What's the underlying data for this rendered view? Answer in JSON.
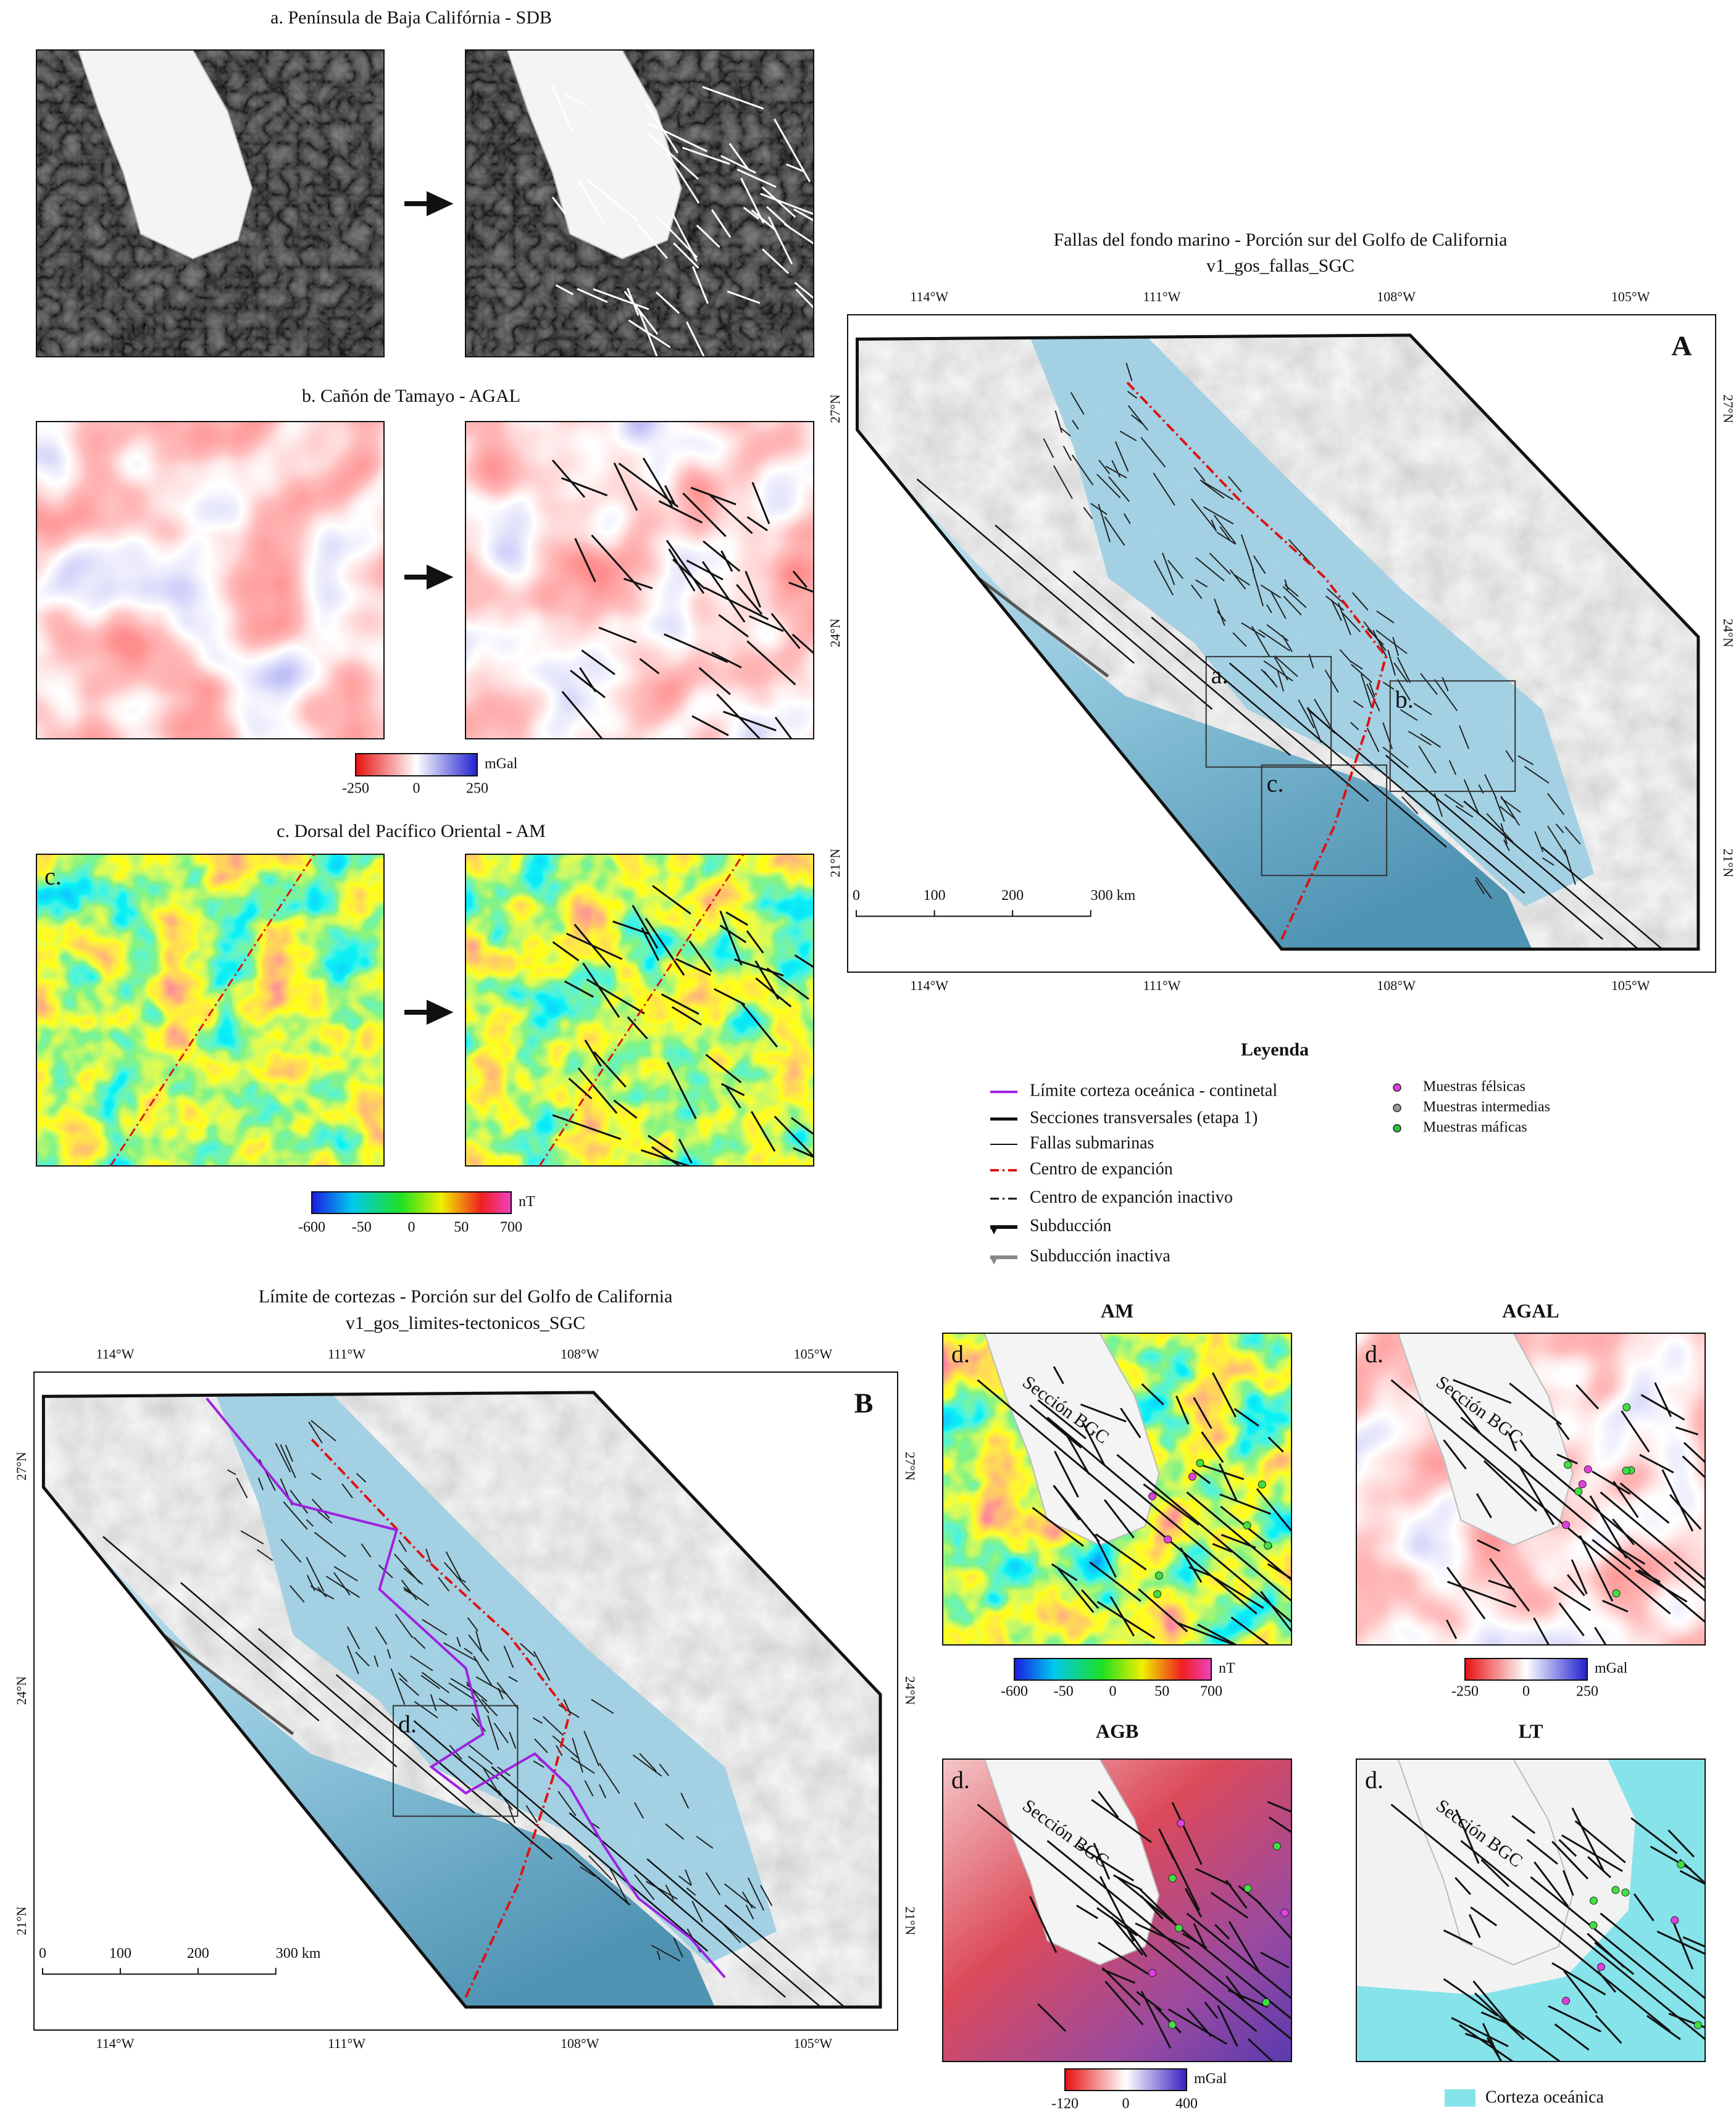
{
  "panel_a": {
    "title": "a. Península de Baja Califórnia - SDB"
  },
  "panel_b": {
    "title": "b. Cañón de Tamayo - AGAL",
    "colorbar": {
      "unit": "mGal",
      "ticks": [
        "-250",
        "0",
        "250"
      ]
    }
  },
  "panel_c": {
    "title": "c. Dorsal del Pacífico Oriental - AM",
    "label": "c.",
    "colorbar": {
      "unit": "nT",
      "ticks": [
        "-600",
        "-50",
        "0",
        "50",
        "700"
      ]
    }
  },
  "map_a": {
    "title": "Fallas del fondo marino - Porción sur del Golfo de California",
    "subtitle": "v1_gos_fallas_SGC",
    "letter": "A",
    "lon": [
      "114°W",
      "111°W",
      "108°W",
      "105°W"
    ],
    "lat": [
      "27°N",
      "24°N",
      "21°N"
    ],
    "boxes": [
      "a.",
      "b.",
      "c."
    ],
    "scale": [
      "0",
      "100",
      "200",
      "300 km"
    ]
  },
  "legend": {
    "title": "Leyenda",
    "items": [
      "Límite corteza oceánica - continetal",
      "Secciones transversales (etapa 1)",
      "Fallas submarinas",
      "Centro de expanción",
      "Centro de expanción inactivo",
      "Subducción",
      "Subducción inactiva"
    ],
    "samples": [
      "Muestras félsicas",
      "Muestras intermedias",
      "Muestras máficas"
    ]
  },
  "map_b": {
    "title": "Límite de  cortezas - Porción sur del Golfo de California",
    "subtitle": "v1_gos_limites-tectonicos_SGC",
    "letter": "B",
    "lon": [
      "114°W",
      "111°W",
      "108°W",
      "105°W"
    ],
    "lat": [
      "27°N",
      "24°N",
      "21°N"
    ],
    "boxes": [
      "d."
    ],
    "scale": [
      "0",
      "100",
      "200",
      "300 km"
    ]
  },
  "panels_d": [
    {
      "title": "AM",
      "label": "d.",
      "section": "Sección BGC",
      "colorbar": {
        "unit": "nT",
        "ticks": [
          "-600",
          "-50",
          "0",
          "50",
          "700"
        ]
      }
    },
    {
      "title": "AGAL",
      "label": "d.",
      "section": "Sección BGC",
      "colorbar": {
        "unit": "mGal",
        "ticks": [
          "-250",
          "0",
          "250"
        ]
      }
    },
    {
      "title": "AGB",
      "label": "d.",
      "section": "Sección BGC",
      "colorbar": {
        "unit": "mGal",
        "ticks": [
          "-120",
          "0",
          "400"
        ]
      }
    },
    {
      "title": "LT",
      "label": "d.",
      "section": "Sección BGC"
    }
  ],
  "ocean_crust": "Corteza oceánica"
}
